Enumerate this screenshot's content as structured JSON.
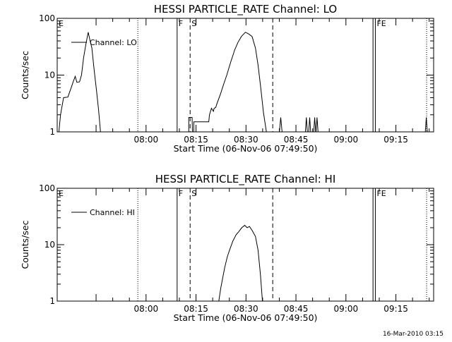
{
  "footer_date": "16-Mar-2010 03:15",
  "chart_data": [
    {
      "type": "line",
      "title": "HESSI PARTICLE_RATE Channel: LO",
      "xlabel": "Start Time (06-Nov-06 07:49:50)",
      "ylabel": "Counts/sec",
      "yscale": "log",
      "ylim": [
        1,
        100
      ],
      "xlim_minutes": [
        -16.5,
        96.5
      ],
      "x_ticks": [
        {
          "m": 10.17,
          "label": "08:00"
        },
        {
          "m": 25.17,
          "label": "08:15"
        },
        {
          "m": 40.17,
          "label": "08:30"
        },
        {
          "m": 55.17,
          "label": "08:45"
        },
        {
          "m": 70.17,
          "label": "09:00"
        },
        {
          "m": 85.17,
          "label": "09:15"
        }
      ],
      "y_ticks": [
        {
          "v": 1,
          "label": "1"
        },
        {
          "v": 10,
          "label": "10"
        },
        {
          "v": 100,
          "label": "100"
        }
      ],
      "legend": "Channel: LO",
      "markers": [
        {
          "m": -16.5,
          "style": "solid",
          "label": "E",
          "label_side": "right"
        },
        {
          "m": 7.7,
          "style": "dotted",
          "label": "",
          "label_side": "right"
        },
        {
          "m": 19.5,
          "style": "solid",
          "label": "F",
          "label_side": "right"
        },
        {
          "m": 23.4,
          "style": "dashed",
          "label": "S",
          "label_side": "right"
        },
        {
          "m": 48.2,
          "style": "dashed",
          "label": "",
          "label_side": "right"
        },
        {
          "m": 78.3,
          "style": "solid",
          "label": "",
          "label_side": "right"
        },
        {
          "m": 79.0,
          "style": "solid",
          "label": "FE",
          "label_side": "right"
        },
        {
          "m": 94.4,
          "style": "dotted",
          "label": "",
          "label_side": "right"
        }
      ],
      "series": [
        {
          "segments": [
            [
              [
                -16.0,
                1
              ],
              [
                -15.5,
                2
              ],
              [
                -14.6,
                4
              ],
              [
                -13.3,
                4.1
              ],
              [
                -12.3,
                6
              ],
              [
                -11.7,
                7.6
              ],
              [
                -11.1,
                9.5
              ],
              [
                -10.6,
                7.5
              ],
              [
                -9.8,
                7.6
              ],
              [
                -9.2,
                10
              ],
              [
                -8.6,
                20
              ],
              [
                -7.9,
                35
              ],
              [
                -7.2,
                57
              ],
              [
                -6.7,
                42
              ],
              [
                -6.1,
                30
              ],
              [
                -5.4,
                12
              ],
              [
                -4.8,
                6
              ],
              [
                -4.1,
                2.5
              ],
              [
                -3.5,
                1
              ]
            ],
            [
              [
                23.0,
                1
              ],
              [
                23.0,
                1.8
              ],
              [
                24.0,
                1.8
              ],
              [
                24.1,
                1
              ],
              [
                24.5,
                1
              ],
              [
                24.5,
                1.5
              ],
              [
                29.0,
                1.5
              ],
              [
                29.2,
                2
              ],
              [
                29.8,
                2.6
              ],
              [
                30.4,
                2.3
              ],
              [
                30.6,
                2.6
              ],
              [
                31.1,
                2.7
              ],
              [
                31.5,
                3.2
              ],
              [
                32.5,
                4.6
              ],
              [
                33.5,
                7
              ],
              [
                34.4,
                10
              ],
              [
                35.6,
                17
              ],
              [
                36.8,
                28
              ],
              [
                37.8,
                38
              ],
              [
                38.8,
                48
              ],
              [
                40.0,
                57
              ],
              [
                41.0,
                53
              ],
              [
                42.0,
                48
              ],
              [
                43.0,
                30
              ],
              [
                43.8,
                15
              ],
              [
                44.6,
                6
              ],
              [
                45.4,
                2.2
              ],
              [
                46.3,
                1
              ]
            ],
            [
              [
                50.2,
                1
              ],
              [
                50.6,
                1.8
              ],
              [
                51.0,
                1
              ]
            ],
            [
              [
                58.0,
                1
              ],
              [
                58.3,
                1.8
              ],
              [
                58.6,
                1
              ]
            ],
            [
              [
                59.0,
                1
              ],
              [
                59.3,
                1.8
              ],
              [
                59.6,
                1
              ]
            ],
            [
              [
                60.5,
                1
              ],
              [
                60.8,
                1.8
              ],
              [
                61.1,
                1
              ]
            ],
            [
              [
                61.2,
                1
              ],
              [
                61.5,
                1.8
              ],
              [
                61.8,
                1
              ]
            ],
            [
              [
                94.0,
                1
              ],
              [
                94.3,
                1.8
              ],
              [
                94.6,
                1
              ]
            ]
          ]
        }
      ]
    },
    {
      "type": "line",
      "title": "HESSI PARTICLE_RATE Channel: HI",
      "xlabel": "Start Time (06-Nov-06 07:49:50)",
      "ylabel": "Counts/sec",
      "yscale": "log",
      "ylim": [
        1,
        100
      ],
      "xlim_minutes": [
        -16.5,
        96.5
      ],
      "x_ticks": [
        {
          "m": 10.17,
          "label": "08:00"
        },
        {
          "m": 25.17,
          "label": "08:15"
        },
        {
          "m": 40.17,
          "label": "08:30"
        },
        {
          "m": 55.17,
          "label": "08:45"
        },
        {
          "m": 70.17,
          "label": "09:00"
        },
        {
          "m": 85.17,
          "label": "09:15"
        }
      ],
      "y_ticks": [
        {
          "v": 1,
          "label": "1"
        },
        {
          "v": 10,
          "label": "10"
        },
        {
          "v": 100,
          "label": "100"
        }
      ],
      "legend": "Channel: HI",
      "markers": [
        {
          "m": -16.5,
          "style": "solid",
          "label": "E",
          "label_side": "right"
        },
        {
          "m": 7.7,
          "style": "dotted",
          "label": "",
          "label_side": "right"
        },
        {
          "m": 19.5,
          "style": "solid",
          "label": "F",
          "label_side": "right"
        },
        {
          "m": 23.4,
          "style": "dashed",
          "label": "S",
          "label_side": "right"
        },
        {
          "m": 48.2,
          "style": "dashed",
          "label": "",
          "label_side": "right"
        },
        {
          "m": 78.3,
          "style": "solid",
          "label": "",
          "label_side": "right"
        },
        {
          "m": 79.0,
          "style": "solid",
          "label": "FE",
          "label_side": "right"
        },
        {
          "m": 94.4,
          "style": "dotted",
          "label": "",
          "label_side": "right"
        }
      ],
      "series": [
        {
          "segments": [
            [
              [
                32.0,
                1
              ],
              [
                32.6,
                1.7
              ],
              [
                33.2,
                2.6
              ],
              [
                33.8,
                4
              ],
              [
                34.6,
                6.2
              ],
              [
                35.4,
                8.5
              ],
              [
                36.2,
                11.5
              ],
              [
                37.2,
                15
              ],
              [
                38.0,
                17
              ],
              [
                38.9,
                20
              ],
              [
                39.8,
                22
              ],
              [
                40.5,
                20
              ],
              [
                41.2,
                21
              ],
              [
                42.0,
                18
              ],
              [
                43.0,
                14
              ],
              [
                43.8,
                8
              ],
              [
                44.5,
                3
              ],
              [
                45.1,
                1
              ]
            ]
          ]
        }
      ]
    }
  ]
}
